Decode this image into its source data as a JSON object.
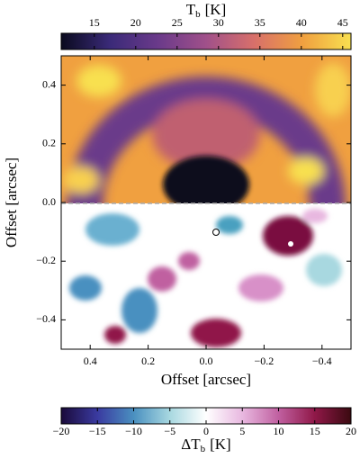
{
  "chart_data": {
    "type": "heatmap",
    "xlabel": "Offset [arcsec]",
    "ylabel": "Offset [arcsec]",
    "xlim": [
      0.5,
      -0.5
    ],
    "ylim": [
      -0.5,
      0.5
    ],
    "xticks": [
      0.4,
      0.2,
      {
        "value": 0,
        "label": "0.0"
      },
      {
        "value": -0.2,
        "label": "−0.2"
      },
      {
        "value": -0.4,
        "label": "−0.4"
      }
    ],
    "yticks": [
      {
        "value": -0.4,
        "label": "−0.4"
      },
      {
        "value": -0.2,
        "label": "−0.2"
      },
      {
        "value": 0,
        "label": "0.0"
      },
      0.2,
      0.4
    ],
    "colorbars": [
      {
        "label": {
          "main": "T",
          "sub": "b",
          "unit": "[K]"
        },
        "lim": [
          11,
          46
        ],
        "ticks": [
          15,
          20,
          25,
          30,
          35,
          40,
          45
        ],
        "colors": [
          "#0a0a1e",
          "#3a2a78",
          "#6a3a8a",
          "#a0508a",
          "#d8706a",
          "#f0a040",
          "#f8e050"
        ]
      },
      {
        "label": {
          "main": "ΔT",
          "sub": "b",
          "unit": "[K]"
        },
        "lim": [
          -20,
          20
        ],
        "ticks": [
          {
            "value": -20,
            "label": "−20"
          },
          {
            "value": -15,
            "label": "−15"
          },
          {
            "value": -10,
            "label": "−10"
          },
          {
            "value": -5,
            "label": "−5"
          },
          0,
          5,
          10,
          15,
          20
        ],
        "colors": [
          "#1a0a3a",
          "#3a3aa0",
          "#4a90c0",
          "#a8d8e0",
          "#ffffff",
          "#e8b8e0",
          "#c060a0",
          "#901848",
          "#3a0a10"
        ]
      }
    ]
  }
}
